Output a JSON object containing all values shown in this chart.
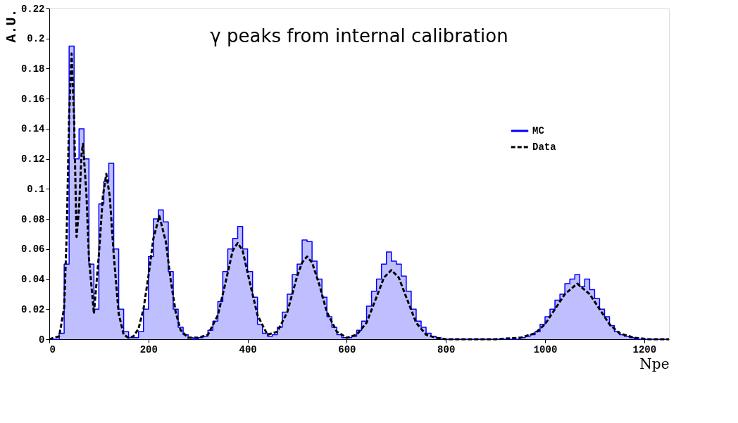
{
  "chart_data": {
    "type": "step",
    "title": "γ peaks from internal calibration",
    "xlabel": "Npe",
    "ylabel": "A.U.",
    "xlim": [
      0,
      1250
    ],
    "xticks": [
      0,
      200,
      400,
      600,
      800,
      1000,
      1200
    ],
    "ylim": [
      0,
      0.22
    ],
    "yticks": [
      0,
      0.02,
      0.04,
      0.06,
      0.08,
      0.1,
      0.12,
      0.14,
      0.16,
      0.18,
      0.2,
      0.22
    ],
    "grid": false,
    "legend": "top right",
    "series": [
      {
        "name": "MC",
        "type": "area",
        "line_style": "solid",
        "color": "#0000ff",
        "x": [
          0,
          10,
          20,
          30,
          40,
          50,
          60,
          70,
          80,
          90,
          100,
          110,
          120,
          130,
          140,
          150,
          160,
          170,
          180,
          190,
          200,
          210,
          220,
          230,
          240,
          250,
          260,
          270,
          280,
          290,
          300,
          310,
          320,
          330,
          340,
          350,
          360,
          370,
          380,
          390,
          400,
          410,
          420,
          430,
          440,
          450,
          460,
          470,
          480,
          490,
          500,
          510,
          520,
          530,
          540,
          550,
          560,
          570,
          580,
          590,
          600,
          610,
          620,
          630,
          640,
          650,
          660,
          670,
          680,
          690,
          700,
          710,
          720,
          730,
          740,
          750,
          760,
          770,
          780,
          790,
          800,
          810,
          820,
          830,
          840,
          850,
          860,
          870,
          880,
          890,
          900,
          910,
          920,
          930,
          940,
          950,
          960,
          970,
          980,
          990,
          1000,
          1010,
          1020,
          1030,
          1040,
          1050,
          1060,
          1070,
          1080,
          1090,
          1100,
          1110,
          1120,
          1130,
          1140,
          1150,
          1160,
          1170,
          1180,
          1190,
          1200,
          1210,
          1220,
          1230,
          1240,
          1250
        ],
        "values": [
          0,
          0,
          0.004,
          0.05,
          0.195,
          0.12,
          0.14,
          0.12,
          0.05,
          0.02,
          0.09,
          0.105,
          0.117,
          0.06,
          0.02,
          0.005,
          0.001,
          0.001,
          0.005,
          0.02,
          0.055,
          0.08,
          0.086,
          0.078,
          0.045,
          0.02,
          0.008,
          0.003,
          0.001,
          0,
          0.001,
          0.002,
          0.006,
          0.012,
          0.025,
          0.045,
          0.06,
          0.067,
          0.075,
          0.06,
          0.045,
          0.028,
          0.01,
          0.004,
          0.002,
          0.003,
          0.008,
          0.018,
          0.03,
          0.043,
          0.05,
          0.066,
          0.065,
          0.052,
          0.04,
          0.028,
          0.015,
          0.008,
          0.003,
          0.001,
          0.001,
          0.002,
          0.006,
          0.012,
          0.022,
          0.032,
          0.04,
          0.05,
          0.058,
          0.052,
          0.05,
          0.042,
          0.032,
          0.02,
          0.012,
          0.008,
          0.004,
          0.002,
          0.001,
          0,
          0,
          0,
          0,
          0,
          0,
          0,
          0,
          0,
          0,
          0,
          0,
          0,
          0,
          0,
          0,
          0.001,
          0.002,
          0.003,
          0.005,
          0.01,
          0.015,
          0.02,
          0.026,
          0.03,
          0.037,
          0.04,
          0.043,
          0.035,
          0.04,
          0.033,
          0.027,
          0.02,
          0.015,
          0.009,
          0.005,
          0.003,
          0.002,
          0.001,
          0,
          0,
          0,
          0,
          0,
          0,
          0,
          0
        ]
      },
      {
        "name": "Data",
        "type": "line",
        "color": "#000000",
        "line_style": "dashed",
        "x": [
          0,
          20,
          30,
          35,
          40,
          45,
          50,
          55,
          60,
          65,
          68,
          75,
          80,
          90,
          100,
          108,
          115,
          122,
          130,
          140,
          150,
          160,
          170,
          180,
          190,
          200,
          210,
          222,
          235,
          245,
          255,
          265,
          280,
          300,
          320,
          340,
          355,
          370,
          380,
          390,
          405,
          420,
          440,
          460,
          480,
          500,
          510,
          520,
          530,
          545,
          560,
          580,
          600,
          620,
          640,
          660,
          675,
          690,
          705,
          720,
          740,
          760,
          780,
          800,
          850,
          900,
          950,
          980,
          1000,
          1020,
          1040,
          1065,
          1090,
          1110,
          1130,
          1150,
          1180,
          1210,
          1250
        ],
        "values": [
          0,
          0.002,
          0.021,
          0.068,
          0.148,
          0.19,
          0.148,
          0.068,
          0.087,
          0.123,
          0.13,
          0.096,
          0.054,
          0.017,
          0.056,
          0.095,
          0.11,
          0.095,
          0.056,
          0.017,
          0.003,
          0.001,
          0.002,
          0.007,
          0.02,
          0.042,
          0.067,
          0.082,
          0.065,
          0.039,
          0.018,
          0.006,
          0.001,
          0.001,
          0.003,
          0.016,
          0.037,
          0.059,
          0.064,
          0.059,
          0.037,
          0.016,
          0.003,
          0.005,
          0.018,
          0.042,
          0.051,
          0.055,
          0.051,
          0.036,
          0.018,
          0.005,
          0.001,
          0.003,
          0.011,
          0.028,
          0.041,
          0.046,
          0.041,
          0.028,
          0.011,
          0.003,
          0.001,
          0,
          0,
          0,
          0.001,
          0.004,
          0.01,
          0.02,
          0.03,
          0.037,
          0.03,
          0.02,
          0.01,
          0.004,
          0.001,
          0,
          0
        ]
      }
    ]
  }
}
